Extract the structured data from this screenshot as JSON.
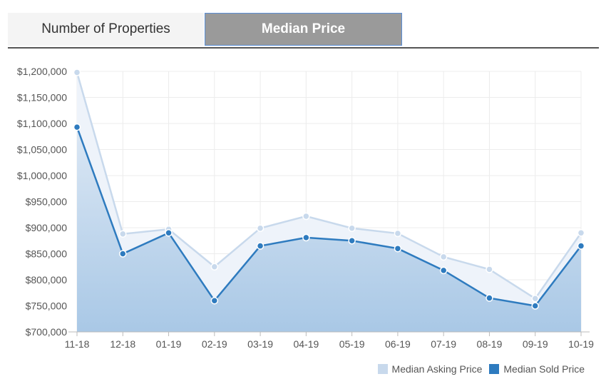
{
  "tabs": [
    {
      "label": "Number of Properties",
      "active": false
    },
    {
      "label": "Median Price",
      "active": true
    }
  ],
  "colors": {
    "asking": "#c8d9ec",
    "sold": "#2e7bbf"
  },
  "chart_data": {
    "type": "area",
    "categories": [
      "11-18",
      "12-18",
      "01-19",
      "02-19",
      "03-19",
      "04-19",
      "05-19",
      "06-19",
      "07-19",
      "08-19",
      "09-19",
      "10-19"
    ],
    "ylim": [
      700000,
      1200000
    ],
    "yticks": [
      700000,
      750000,
      800000,
      850000,
      900000,
      950000,
      1000000,
      1050000,
      1100000,
      1150000,
      1200000
    ],
    "ytick_labels": [
      "$700,000",
      "$750,000",
      "$800,000",
      "$850,000",
      "$900,000",
      "$950,000",
      "$1,000,000",
      "$1,050,000",
      "$1,100,000",
      "$1,150,000",
      "$1,200,000"
    ],
    "grid": true,
    "legend_position": "bottom-right",
    "series": [
      {
        "name": "Median Asking Price",
        "values": [
          1198000,
          888000,
          897000,
          825000,
          899000,
          922000,
          899000,
          889000,
          844000,
          820000,
          764000,
          890000
        ]
      },
      {
        "name": "Median Sold Price",
        "values": [
          1093000,
          850000,
          890000,
          760000,
          865000,
          881000,
          875000,
          860000,
          818000,
          765000,
          750000,
          865000
        ]
      }
    ]
  }
}
